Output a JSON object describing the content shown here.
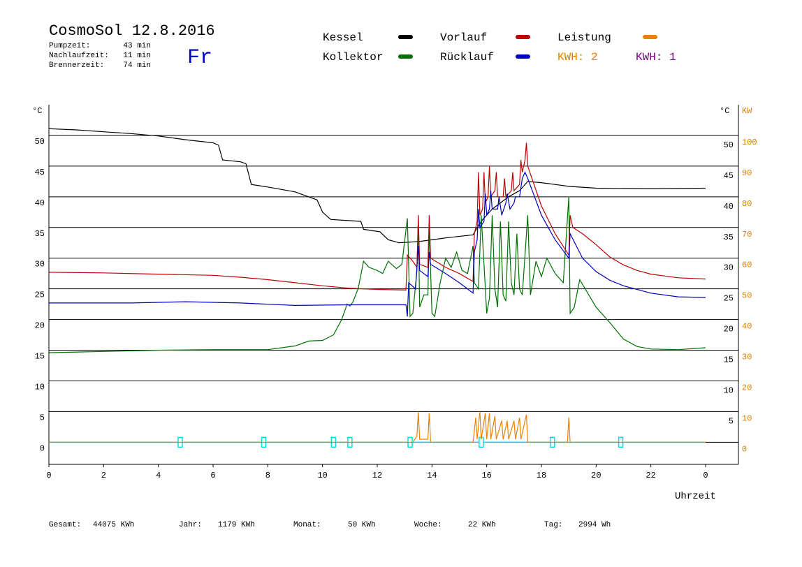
{
  "header": {
    "title": "CosmoSol 12.8.2016",
    "day": "Fr",
    "stats": [
      {
        "label": "Pumpzeit:",
        "value": "43 min"
      },
      {
        "label": "Nachlaufzeit:",
        "value": "11 min"
      },
      {
        "label": "Brennerzeit:",
        "value": "74 min"
      }
    ]
  },
  "footer": [
    {
      "label": "Gesamt:",
      "value": "44075 KWh"
    },
    {
      "label": "Jahr:",
      "value": "1179 KWh"
    },
    {
      "label": "Monat:",
      "value": "50 KWh"
    },
    {
      "label": "Woche:",
      "value": "22 KWh"
    },
    {
      "label": "Tag:",
      "value": "2994 Wh"
    }
  ],
  "chart_data": {
    "type": "line",
    "x_label": "Uhrzeit",
    "y_unit": "°C",
    "y2_unit": "KW",
    "grid": true,
    "xlim": [
      0,
      25.2
    ],
    "xticks": [
      0,
      2,
      4,
      6,
      8,
      10,
      12,
      14,
      16,
      18,
      20,
      22,
      {
        "value": 24,
        "label": "0"
      }
    ],
    "ylim": [
      -3.6,
      55
    ],
    "yticks": [
      0,
      5,
      10,
      15,
      20,
      25,
      30,
      35,
      40,
      45,
      50
    ],
    "y2lim": [
      -7.2,
      110
    ],
    "y2ticks": [
      0,
      10,
      20,
      30,
      40,
      50,
      60,
      70,
      80,
      90,
      100
    ],
    "y2_color": "#e08000",
    "legend_notes": [
      {
        "label": "KWH: 2",
        "color": "#e08000"
      },
      {
        "label": "KWH: 1",
        "color": "#800080"
      }
    ],
    "events": {
      "color": "#00e0e0",
      "x": [
        4.8,
        7.85,
        10.4,
        11.0,
        13.2,
        15.8,
        18.4,
        20.9
      ]
    },
    "series": [
      {
        "name": "Kessel",
        "color": "#000000",
        "x": [
          0,
          1,
          2,
          3,
          4,
          5,
          6,
          6.2,
          6.35,
          7,
          7.2,
          7.4,
          8,
          9,
          9.8,
          10,
          10.3,
          11.4,
          11.5,
          12.1,
          12.4,
          12.8,
          13.5,
          14.5,
          15.5,
          15.8,
          16.2,
          16.8,
          17.2,
          17.5,
          18,
          18.5,
          19,
          20,
          22,
          24
        ],
        "values": [
          51.1,
          50.9,
          50.6,
          50.3,
          49.9,
          49.3,
          48.8,
          48.4,
          46,
          45.7,
          45.4,
          42,
          41.6,
          40.8,
          39.5,
          37.5,
          36.3,
          36,
          34.7,
          34.3,
          33,
          32.5,
          32.7,
          33.3,
          33.8,
          36,
          38,
          40,
          41,
          42.5,
          42.3,
          42,
          41.7,
          41.4,
          41.3,
          41.4
        ]
      },
      {
        "name": "Kollektor",
        "color": "#007000",
        "x": [
          0,
          2,
          4,
          6,
          8,
          9,
          9.5,
          10,
          10.4,
          10.7,
          10.9,
          11.0,
          11.1,
          11.3,
          11.5,
          11.7,
          12,
          12.2,
          12.4,
          12.7,
          12.9,
          13.1,
          13.2,
          13.3,
          13.45,
          13.5,
          13.55,
          13.7,
          13.85,
          13.9,
          14.0,
          14.1,
          14.3,
          14.5,
          14.7,
          14.9,
          15.1,
          15.3,
          15.5,
          15.55,
          15.7,
          15.8,
          15.9,
          16.0,
          16.1,
          16.2,
          16.3,
          16.4,
          16.5,
          16.6,
          16.7,
          16.8,
          16.9,
          17.0,
          17.1,
          17.2,
          17.3,
          17.5,
          17.6,
          17.8,
          18.0,
          18.2,
          18.5,
          18.8,
          19.0,
          19.05,
          19.2,
          19.4,
          19.6,
          20,
          20.5,
          21,
          21.5,
          22,
          23,
          24
        ],
        "values": [
          14.6,
          14.8,
          15.0,
          15.1,
          15.1,
          15.7,
          16.5,
          16.6,
          17.5,
          20,
          22.5,
          22.2,
          22.8,
          25,
          29.5,
          28.5,
          28,
          27.5,
          29.5,
          28.3,
          29,
          36.5,
          20.5,
          21,
          28,
          36,
          22,
          24,
          24,
          35,
          21,
          20.5,
          26,
          30,
          28.5,
          31,
          28,
          27.5,
          32,
          26,
          25,
          37,
          29,
          21,
          23.5,
          37,
          25,
          22,
          36,
          24,
          23,
          36,
          26,
          24,
          34,
          25,
          24,
          37,
          24,
          29.5,
          27,
          30,
          27.5,
          26,
          40,
          21,
          22,
          26.5,
          25,
          22,
          19.5,
          16.8,
          15.6,
          15.2,
          15.1,
          15.4
        ]
      },
      {
        "name": "Vorlauf",
        "color": "#c00000",
        "x": [
          0,
          2,
          4,
          6,
          7,
          8,
          9,
          10,
          11,
          12,
          13.05,
          13.1,
          13.3,
          13.45,
          13.5,
          13.55,
          13.85,
          13.9,
          13.95,
          14.5,
          15,
          15.5,
          15.55,
          15.65,
          15.7,
          15.75,
          15.85,
          15.9,
          15.95,
          16.05,
          16.1,
          16.15,
          16.3,
          16.35,
          16.4,
          16.6,
          16.65,
          16.7,
          16.9,
          16.95,
          17.0,
          17.2,
          17.25,
          17.3,
          17.4,
          17.45,
          17.5,
          18,
          18.5,
          19.0,
          19.05,
          19.15,
          19.5,
          20,
          20.5,
          21,
          21.5,
          22,
          23,
          24
        ],
        "values": [
          27.7,
          27.6,
          27.4,
          27.2,
          26.9,
          26.5,
          26.0,
          25.5,
          25.1,
          24.9,
          24.8,
          30.5,
          29.5,
          28.5,
          37,
          29,
          28.5,
          37,
          30,
          28.5,
          27.5,
          26.2,
          34,
          36,
          44,
          37,
          38,
          44,
          39,
          40,
          45,
          40,
          41,
          44,
          40,
          40,
          43,
          40,
          41,
          44,
          41,
          42,
          46,
          44,
          46,
          48.8,
          45,
          38.5,
          34,
          30.5,
          37,
          35,
          34,
          32.2,
          30.2,
          28.9,
          28,
          27.4,
          26.8,
          26.6
        ]
      },
      {
        "name": "Rücklauf",
        "color": "#0000c0",
        "x": [
          0,
          3,
          5,
          7,
          9,
          11,
          13.05,
          13.1,
          13.15,
          13.4,
          13.5,
          13.55,
          13.85,
          13.9,
          13.95,
          14.5,
          15,
          15.5,
          15.55,
          15.65,
          15.7,
          15.75,
          15.9,
          15.95,
          16.0,
          16.1,
          16.15,
          16.2,
          16.4,
          16.45,
          16.55,
          16.7,
          16.75,
          16.85,
          17.0,
          17.05,
          17.2,
          17.3,
          17.4,
          17.5,
          18,
          18.5,
          19.0,
          19.05,
          19.5,
          20,
          20.5,
          21,
          22,
          23,
          24
        ],
        "values": [
          22.7,
          22.7,
          22.9,
          22.7,
          22.3,
          22.4,
          22.4,
          20.5,
          26,
          25,
          32,
          28,
          27,
          31,
          29,
          27.5,
          26,
          24.3,
          31,
          33,
          38,
          35,
          36,
          40.5,
          37,
          38,
          41,
          38,
          38,
          40,
          37,
          39,
          40.5,
          38,
          39,
          40,
          40,
          43,
          44,
          43,
          37,
          33,
          30,
          34,
          30,
          27.8,
          26.4,
          25.5,
          24.3,
          23.7,
          23.6
        ]
      },
      {
        "name": "Leistung",
        "color": "#f08000",
        "axis": "y2",
        "x": [
          0,
          13.3,
          13.45,
          13.5,
          13.55,
          13.85,
          13.9,
          13.95,
          15.5,
          15.6,
          15.65,
          15.75,
          15.8,
          15.95,
          16.0,
          16.1,
          16.15,
          16.3,
          16.35,
          16.55,
          16.6,
          16.75,
          16.8,
          17.0,
          17.05,
          17.2,
          17.25,
          17.45,
          17.5,
          18.95,
          19.0,
          19.05,
          24
        ],
        "values": [
          0,
          0,
          2,
          10,
          1,
          1,
          9.5,
          0,
          0,
          8,
          1,
          10,
          1,
          9.5,
          1,
          9.5,
          1,
          8.5,
          1,
          7,
          1,
          7,
          1,
          7,
          1,
          8,
          1,
          9,
          0,
          0,
          8,
          0,
          0
        ]
      }
    ]
  }
}
